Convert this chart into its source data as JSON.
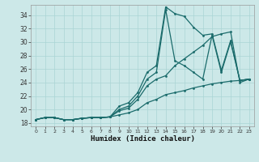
{
  "xlabel": "Humidex (Indice chaleur)",
  "bg_color": "#cce8e8",
  "grid_color": "#aad4d4",
  "line_color": "#1a6b6b",
  "xlim": [
    -0.5,
    23.5
  ],
  "ylim": [
    17.5,
    35.5
  ],
  "xticks": [
    0,
    1,
    2,
    3,
    4,
    5,
    6,
    7,
    8,
    9,
    10,
    11,
    12,
    13,
    14,
    15,
    16,
    17,
    18,
    19,
    20,
    21,
    22,
    23
  ],
  "yticks": [
    18,
    20,
    22,
    24,
    26,
    28,
    30,
    32,
    34
  ],
  "series1_x": [
    0,
    1,
    2,
    3,
    4,
    5,
    6,
    7,
    8,
    9,
    10,
    11,
    12,
    13,
    14,
    15,
    16,
    17,
    18,
    19,
    20,
    21,
    22,
    23
  ],
  "series1_y": [
    18.5,
    18.8,
    18.8,
    18.5,
    18.5,
    18.7,
    18.8,
    18.8,
    18.9,
    20.5,
    21.0,
    22.5,
    25.5,
    26.5,
    35.2,
    34.2,
    33.8,
    32.2,
    31.0,
    31.2,
    25.8,
    30.2,
    24.3,
    24.5
  ],
  "series2_x": [
    0,
    1,
    2,
    3,
    4,
    5,
    6,
    7,
    8,
    9,
    10,
    11,
    12,
    13,
    14,
    15,
    16,
    17,
    18,
    19,
    20,
    21,
    22,
    23
  ],
  "series2_y": [
    18.5,
    18.8,
    18.8,
    18.5,
    18.5,
    18.7,
    18.8,
    18.8,
    18.9,
    20.0,
    20.5,
    22.0,
    24.5,
    25.5,
    34.8,
    27.2,
    26.5,
    25.5,
    24.5,
    31.0,
    25.5,
    30.0,
    24.3,
    24.5
  ],
  "series3_x": [
    0,
    1,
    2,
    3,
    4,
    5,
    6,
    7,
    8,
    9,
    10,
    11,
    12,
    13,
    14,
    15,
    16,
    17,
    18,
    19,
    20,
    21,
    22,
    23
  ],
  "series3_y": [
    18.5,
    18.8,
    18.8,
    18.5,
    18.5,
    18.7,
    18.8,
    18.8,
    18.9,
    19.8,
    20.2,
    21.5,
    23.5,
    24.5,
    25.0,
    26.5,
    27.5,
    28.5,
    29.5,
    30.8,
    31.2,
    31.5,
    24.0,
    24.5
  ],
  "series4_x": [
    0,
    1,
    2,
    3,
    4,
    5,
    6,
    7,
    8,
    9,
    10,
    11,
    12,
    13,
    14,
    15,
    16,
    17,
    18,
    19,
    20,
    21,
    22,
    23
  ],
  "series4_y": [
    18.5,
    18.8,
    18.8,
    18.5,
    18.5,
    18.7,
    18.8,
    18.8,
    18.9,
    19.2,
    19.5,
    20.0,
    21.0,
    21.5,
    22.2,
    22.5,
    22.8,
    23.2,
    23.5,
    23.8,
    24.0,
    24.2,
    24.3,
    24.5
  ]
}
